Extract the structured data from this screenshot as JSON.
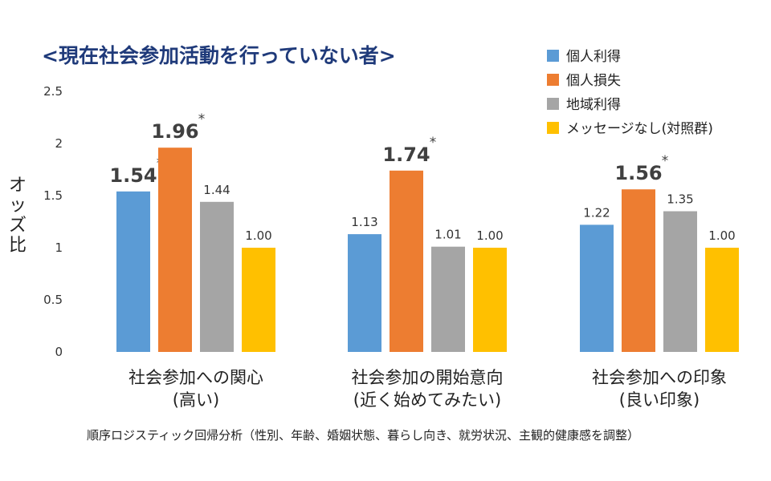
{
  "chart_data": {
    "type": "bar",
    "title": "<現在社会参加活動を行っていない者>",
    "ylabel": "オッズ比",
    "ylim": [
      0,
      2.5
    ],
    "yticks": [
      "0",
      "0.5",
      "1",
      "1.5",
      "2",
      "2.5"
    ],
    "categories": [
      [
        "社会参加への関心",
        "(高い)"
      ],
      [
        "社会参加の開始意向",
        "(近く始めてみたい)"
      ],
      [
        "社会参加への印象",
        "(良い印象)"
      ]
    ],
    "series": [
      {
        "name": "個人利得",
        "color": "#5b9bd5",
        "values": [
          1.54,
          1.13,
          1.22
        ],
        "labels": [
          "1.54",
          "1.13",
          "1.22"
        ],
        "significant": [
          true,
          false,
          false
        ]
      },
      {
        "name": "個人損失",
        "color": "#ed7d31",
        "values": [
          1.96,
          1.74,
          1.56
        ],
        "labels": [
          "1.96",
          "1.74",
          "1.56"
        ],
        "significant": [
          true,
          true,
          true
        ]
      },
      {
        "name": "地域利得",
        "color": "#a5a5a5",
        "values": [
          1.44,
          1.01,
          1.35
        ],
        "labels": [
          "1.44",
          "1.01",
          "1.35"
        ],
        "significant": [
          false,
          false,
          false
        ]
      },
      {
        "name": "メッセージなし(対照群)",
        "color": "#ffc000",
        "values": [
          1.0,
          1.0,
          1.0
        ],
        "labels": [
          "1.00",
          "1.00",
          "1.00"
        ],
        "significant": [
          false,
          false,
          false
        ]
      }
    ],
    "significance_mark": "*",
    "legend": "top-right",
    "grid": false,
    "footnote": "順序ロジスティック回帰分析（性別、年齢、婚姻状態、暮らし向き、就労状況、主観的健康感を調整）"
  }
}
